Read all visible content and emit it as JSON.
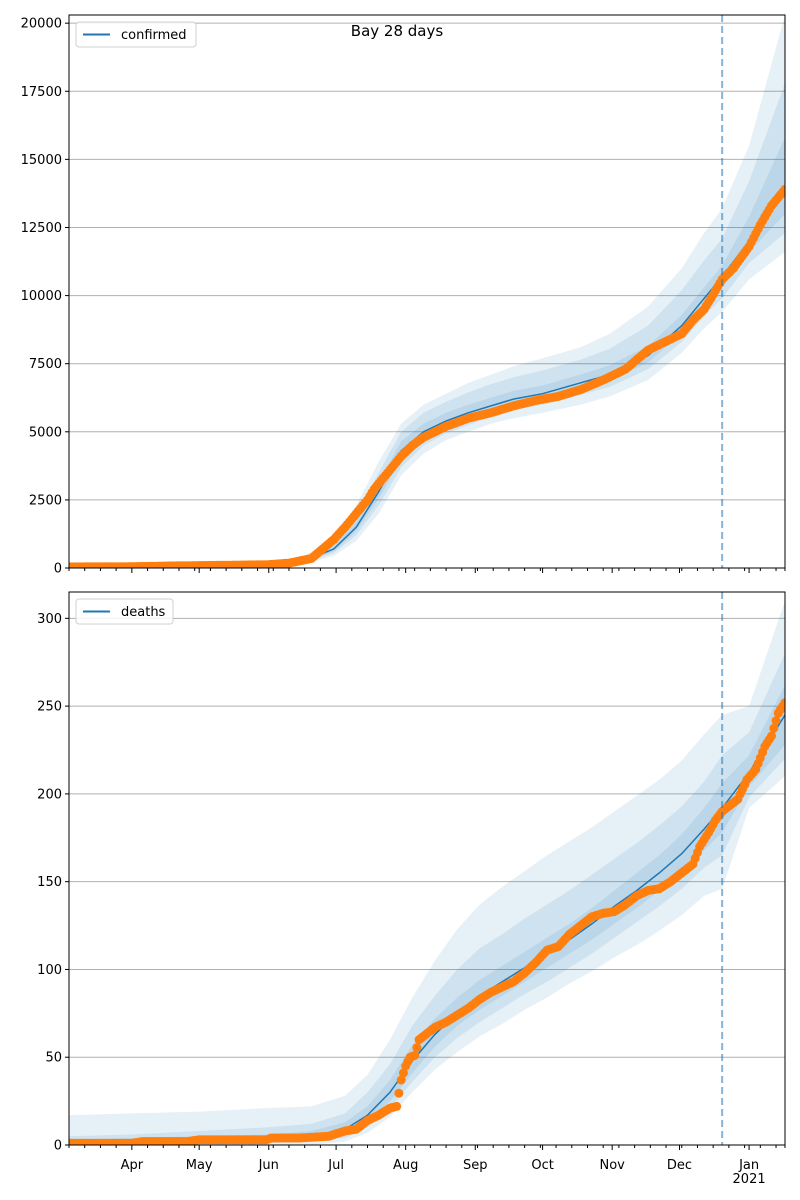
{
  "chart_data": [
    {
      "type": "line",
      "title": "Bay 28 days",
      "legend": [
        "confirmed"
      ],
      "legend_position": "top-left",
      "ylim": [
        0,
        20300
      ],
      "yticks": [
        0,
        2500,
        5000,
        7500,
        10000,
        12500,
        15000,
        17500,
        20000
      ],
      "ytick_labels": [
        "0",
        "2500",
        "5000",
        "7500",
        "10000",
        "12500",
        "15000",
        "17500",
        "20000"
      ],
      "xlim_days": [
        -28,
        291
      ],
      "x_unit": "days since 2020-04-01",
      "forecast_start_day": 263,
      "grid": "y",
      "model": {
        "x": [
          -28,
          0,
          30,
          60,
          75,
          90,
          100,
          110,
          120,
          130,
          140,
          150,
          160,
          170,
          183,
          200,
          213,
          230,
          245,
          255,
          263,
          275,
          291
        ],
        "y": [
          30,
          40,
          60,
          100,
          200,
          700,
          1500,
          2800,
          4300,
          5000,
          5400,
          5700,
          5950,
          6200,
          6400,
          6800,
          7100,
          7800,
          8900,
          9900,
          10700,
          12000,
          14000
        ],
        "bands": [
          {
            "lo": [
              0,
              0,
              0,
              0,
              80,
              450,
              1000,
              2000,
              3400,
              4200,
              4700,
              5000,
              5300,
              5500,
              5700,
              6000,
              6300,
              6900,
              7900,
              8800,
              9400,
              10600,
              11600
            ],
            "hi": [
              80,
              90,
              110,
              160,
              350,
              1100,
              2300,
              3900,
              5300,
              6000,
              6400,
              6800,
              7100,
              7400,
              7700,
              8100,
              8600,
              9600,
              11000,
              12300,
              13200,
              15500,
              20300
            ]
          },
          {
            "lo": [
              10,
              15,
              25,
              50,
              120,
              550,
              1200,
              2300,
              3700,
              4500,
              4950,
              5250,
              5550,
              5800,
              6000,
              6350,
              6650,
              7300,
              8300,
              9250,
              9900,
              11200,
              12300
            ],
            "hi": [
              60,
              70,
              90,
              140,
              290,
              950,
              2000,
              3500,
              5000,
              5700,
              6100,
              6450,
              6750,
              7000,
              7250,
              7650,
              8050,
              8900,
              10200,
              11300,
              12100,
              14200,
              17800
            ]
          },
          {
            "lo": [
              20,
              25,
              40,
              75,
              160,
              620,
              1350,
              2550,
              4000,
              4750,
              5150,
              5450,
              5750,
              6000,
              6200,
              6550,
              6850,
              7550,
              8600,
              9550,
              10300,
              11600,
              13000
            ],
            "hi": [
              45,
              55,
              75,
              120,
              240,
              800,
              1700,
              3100,
              4650,
              5300,
              5700,
              6000,
              6250,
              6500,
              6700,
              7100,
              7450,
              8150,
              9300,
              10300,
              11100,
              12900,
              15800
            ]
          }
        ]
      },
      "observed": {
        "x": [
          -28,
          0,
          20,
          40,
          60,
          70,
          80,
          85,
          90,
          95,
          100,
          105,
          108,
          112,
          116,
          120,
          125,
          130,
          140,
          150,
          160,
          170,
          180,
          190,
          200,
          210,
          220,
          230,
          240,
          245,
          250,
          255,
          258,
          263,
          268,
          275,
          280,
          285,
          291
        ],
        "y": [
          40,
          50,
          80,
          100,
          120,
          180,
          350,
          700,
          1050,
          1500,
          2000,
          2500,
          2900,
          3300,
          3700,
          4100,
          4500,
          4800,
          5200,
          5500,
          5700,
          5950,
          6150,
          6300,
          6550,
          6900,
          7300,
          8000,
          8400,
          8600,
          9100,
          9500,
          9900,
          10600,
          11000,
          11800,
          12600,
          13300,
          13900
        ]
      }
    },
    {
      "type": "line",
      "legend": [
        "deaths"
      ],
      "legend_position": "top-left",
      "ylim": [
        0,
        315
      ],
      "yticks": [
        0,
        50,
        100,
        150,
        200,
        250,
        300
      ],
      "ytick_labels": [
        "0",
        "50",
        "100",
        "150",
        "200",
        "250",
        "300"
      ],
      "xlim_days": [
        -28,
        291
      ],
      "x_unit": "days since 2020-04-01",
      "xtick_labels": [
        "Apr",
        "May",
        "Jun",
        "Jul",
        "Aug",
        "Sep",
        "Oct",
        "Nov",
        "Dec",
        "Jan\n2021"
      ],
      "xtick_days": [
        0,
        30,
        61,
        91,
        122,
        153,
        183,
        214,
        244,
        275
      ],
      "xtick_top": [
        "Apr",
        "May",
        "Jun",
        "Jul",
        "Aug",
        "Sep",
        "Oct",
        "Nov",
        "Dec",
        "Jan"
      ],
      "xtick_bottom": [
        "",
        "",
        "",
        "",
        "",
        "",
        "",
        "",
        "",
        "2021"
      ],
      "forecast_start_day": 263,
      "grid": "y",
      "model": {
        "x": [
          -28,
          0,
          30,
          60,
          80,
          95,
          105,
          115,
          125,
          135,
          145,
          155,
          165,
          175,
          185,
          195,
          205,
          215,
          225,
          235,
          245,
          255,
          263,
          275,
          291
        ],
        "y": [
          1,
          2,
          3,
          4,
          5,
          9,
          17,
          30,
          48,
          63,
          75,
          85,
          93,
          101,
          109,
          117,
          126,
          136,
          145,
          155,
          166,
          180,
          192,
          212,
          245
        ],
        "bands": [
          {
            "lo": [
              0,
              0,
              0,
              0,
              0,
              2,
              7,
              16,
              30,
              43,
              53,
              62,
              69,
              77,
              84,
              92,
              99,
              107,
              114,
              122,
              131,
              142,
              146,
              192,
              210
            ],
            "hi": [
              17,
              18,
              19,
              21,
              22,
              28,
              40,
              60,
              84,
              105,
              123,
              137,
              147,
              156,
              165,
              173,
              181,
              190,
              199,
              208,
              219,
              234,
              245,
              250,
              310
            ]
          },
          {
            "lo": [
              0,
              0,
              1,
              1,
              2,
              4,
              10,
              21,
              36,
              50,
              61,
              70,
              78,
              86,
              93,
              101,
              109,
              118,
              127,
              136,
              146,
              158,
              165,
              198,
              220
            ],
            "hi": [
              5,
              6,
              8,
              10,
              12,
              18,
              30,
              46,
              68,
              85,
              100,
              112,
              120,
              129,
              137,
              145,
              154,
              163,
              172,
              182,
              193,
              207,
              222,
              235,
              280
            ]
          },
          {
            "lo": [
              0,
              1,
              2,
              2,
              3,
              6,
              13,
              25,
              41,
              56,
              68,
              77,
              85,
              93,
              101,
              109,
              117,
              126,
              135,
              145,
              155,
              168,
              178,
              204,
              228
            ],
            "hi": [
              3,
              4,
              5,
              6,
              8,
              13,
              22,
              37,
              57,
              72,
              84,
              94,
              102,
              110,
              118,
              126,
              135,
              145,
              155,
              165,
              177,
              192,
              206,
              222,
              262
            ]
          }
        ]
      },
      "observed": {
        "x": [
          -28,
          0,
          5,
          15,
          25,
          30,
          45,
          60,
          62,
          75,
          88,
          90,
          95,
          100,
          105,
          110,
          115,
          118,
          120,
          122,
          124,
          126,
          128,
          132,
          135,
          140,
          145,
          150,
          155,
          160,
          165,
          170,
          175,
          180,
          185,
          190,
          195,
          200,
          205,
          210,
          215,
          220,
          225,
          230,
          235,
          240,
          245,
          250,
          253,
          257,
          260,
          263,
          266,
          270,
          274,
          278,
          282,
          285,
          288,
          291
        ],
        "y": [
          1,
          1,
          2,
          2,
          2,
          3,
          3,
          3,
          4,
          4,
          5,
          6,
          8,
          9,
          14,
          17,
          21,
          22,
          37,
          45,
          50,
          51,
          60,
          64,
          67,
          70,
          74,
          78,
          83,
          87,
          90,
          93,
          98,
          104,
          111,
          113,
          120,
          125,
          130,
          132,
          133,
          137,
          142,
          145,
          146,
          150,
          155,
          160,
          170,
          178,
          185,
          190,
          193,
          197,
          208,
          214,
          227,
          233,
          246,
          252
        ]
      }
    }
  ]
}
